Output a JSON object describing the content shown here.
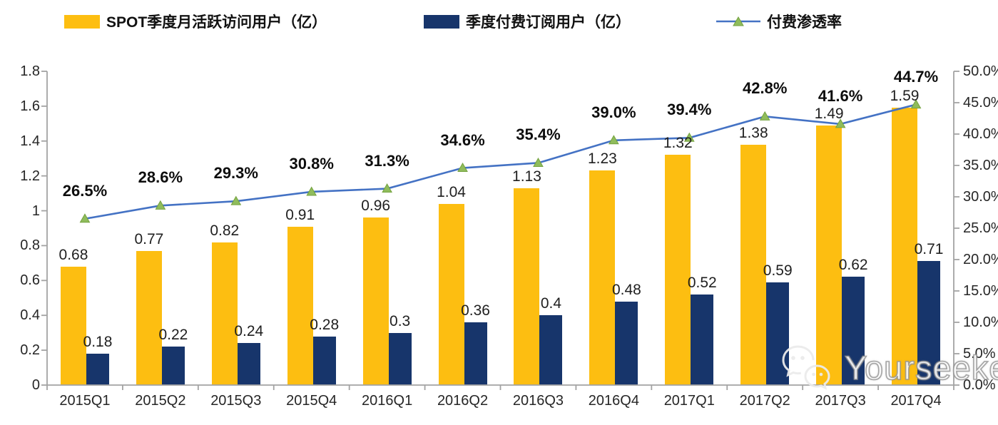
{
  "legend": {
    "items": [
      {
        "label": "SPOT季度月活跃访问用户（亿）",
        "swatch": "bar",
        "color": "#FDBE11"
      },
      {
        "label": "季度付费订阅用户（亿）",
        "swatch": "bar",
        "color": "#17356B"
      },
      {
        "label": "付费渗透率",
        "swatch": "line",
        "color": "#4472C4",
        "marker_color": "#8FBC5C"
      }
    ]
  },
  "chart_data": {
    "type": "bar",
    "subtype": "grouped-bars-with-line",
    "categories": [
      "2015Q1",
      "2015Q2",
      "2015Q3",
      "2015Q4",
      "2016Q1",
      "2016Q2",
      "2016Q3",
      "2016Q4",
      "2017Q1",
      "2017Q2",
      "2017Q3",
      "2017Q4"
    ],
    "series": [
      {
        "name": "SPOT季度月活跃访问用户（亿）",
        "type": "bar",
        "axis": "left",
        "color": "#FDBE11",
        "values": [
          0.68,
          0.77,
          0.82,
          0.91,
          0.96,
          1.04,
          1.13,
          1.23,
          1.32,
          1.38,
          1.49,
          1.59
        ],
        "labels": [
          "0.68",
          "0.77",
          "0.82",
          "0.91",
          "0.96",
          "1.04",
          "1.13",
          "1.23",
          "1.32",
          "1.38",
          "1.49",
          "1.59"
        ]
      },
      {
        "name": "季度付费订阅用户（亿）",
        "type": "bar",
        "axis": "left",
        "color": "#17356B",
        "values": [
          0.18,
          0.22,
          0.24,
          0.28,
          0.3,
          0.36,
          0.4,
          0.48,
          0.52,
          0.59,
          0.62,
          0.71
        ],
        "labels": [
          "0.18",
          "0.22",
          "0.24",
          "0.28",
          "0.3",
          "0.36",
          "0.4",
          "0.48",
          "0.52",
          "0.59",
          "0.62",
          "0.71"
        ]
      },
      {
        "name": "付费渗透率",
        "type": "line",
        "axis": "right",
        "color": "#4472C4",
        "marker": "triangle",
        "marker_color": "#8FBC5C",
        "marker_edge": "#74A23E",
        "values": [
          26.5,
          28.6,
          29.3,
          30.8,
          31.3,
          34.6,
          35.4,
          39.0,
          39.4,
          42.8,
          41.6,
          44.7
        ],
        "labels": [
          "26.5%",
          "28.6%",
          "29.3%",
          "30.8%",
          "31.3%",
          "34.6%",
          "35.4%",
          "39.0%",
          "39.4%",
          "42.8%",
          "41.6%",
          "44.7%"
        ]
      }
    ],
    "left_axis": {
      "min": 0,
      "max": 1.8,
      "step": 0.2,
      "tick_values": [
        0,
        0.2,
        0.4,
        0.6,
        0.8,
        1,
        1.2,
        1.4,
        1.6,
        1.8
      ],
      "tick_labels": [
        "0",
        "0.2",
        "0.4",
        "0.6",
        "0.8",
        "1",
        "1.2",
        "1.4",
        "1.6",
        "1.8"
      ]
    },
    "right_axis": {
      "min": 0,
      "max": 50,
      "step": 5,
      "tick_values": [
        0,
        5,
        10,
        15,
        20,
        25,
        30,
        35,
        40,
        45,
        50
      ],
      "tick_labels": [
        "0.0%",
        "5.0%",
        "10.0%",
        "15.0%",
        "20.0%",
        "25.0%",
        "30.0%",
        "35.0%",
        "40.0%",
        "45.0%",
        "50.0%"
      ]
    },
    "grid": false,
    "legend_position": "top",
    "axis_color": "#a3a3a3"
  },
  "watermark": {
    "text": "Yourseeker",
    "icon": "wechat-icon"
  }
}
